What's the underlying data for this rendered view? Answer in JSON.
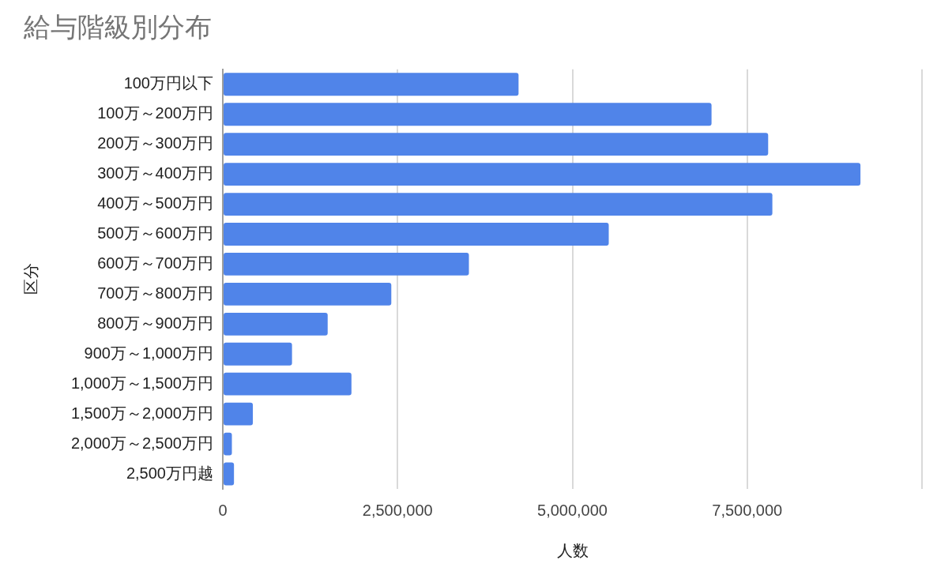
{
  "chart_data": {
    "type": "bar",
    "orientation": "horizontal",
    "title": "給与階級別分布",
    "xlabel": "人数",
    "ylabel": "区分",
    "categories": [
      "100万円以下",
      "100万～200万円",
      "200万～300万円",
      "300万～400万円",
      "400万～500万円",
      "500万～600万円",
      "600万～700万円",
      "700万～800万円",
      "800万～900万円",
      "900万～1,000万円",
      "1,000万～1,500万円",
      "1,500万～2,000万円",
      "2,000万～2,500万円",
      "2,500万円越"
    ],
    "values": [
      4230000,
      6990000,
      7800000,
      9120000,
      7860000,
      5520000,
      3520000,
      2410000,
      1500000,
      990000,
      1840000,
      430000,
      130000,
      160000
    ],
    "color": "#5084e9",
    "xlim": [
      0,
      10000000
    ],
    "xticks": [
      0,
      {
        "value": 2500000,
        "label": "2,500,000"
      },
      {
        "value": 5000000,
        "label": "5,000,000"
      },
      {
        "value": 7500000,
        "label": "7,500,000"
      },
      {
        "value": 10000000,
        "label": null
      }
    ],
    "grid": "x",
    "legend": false
  }
}
